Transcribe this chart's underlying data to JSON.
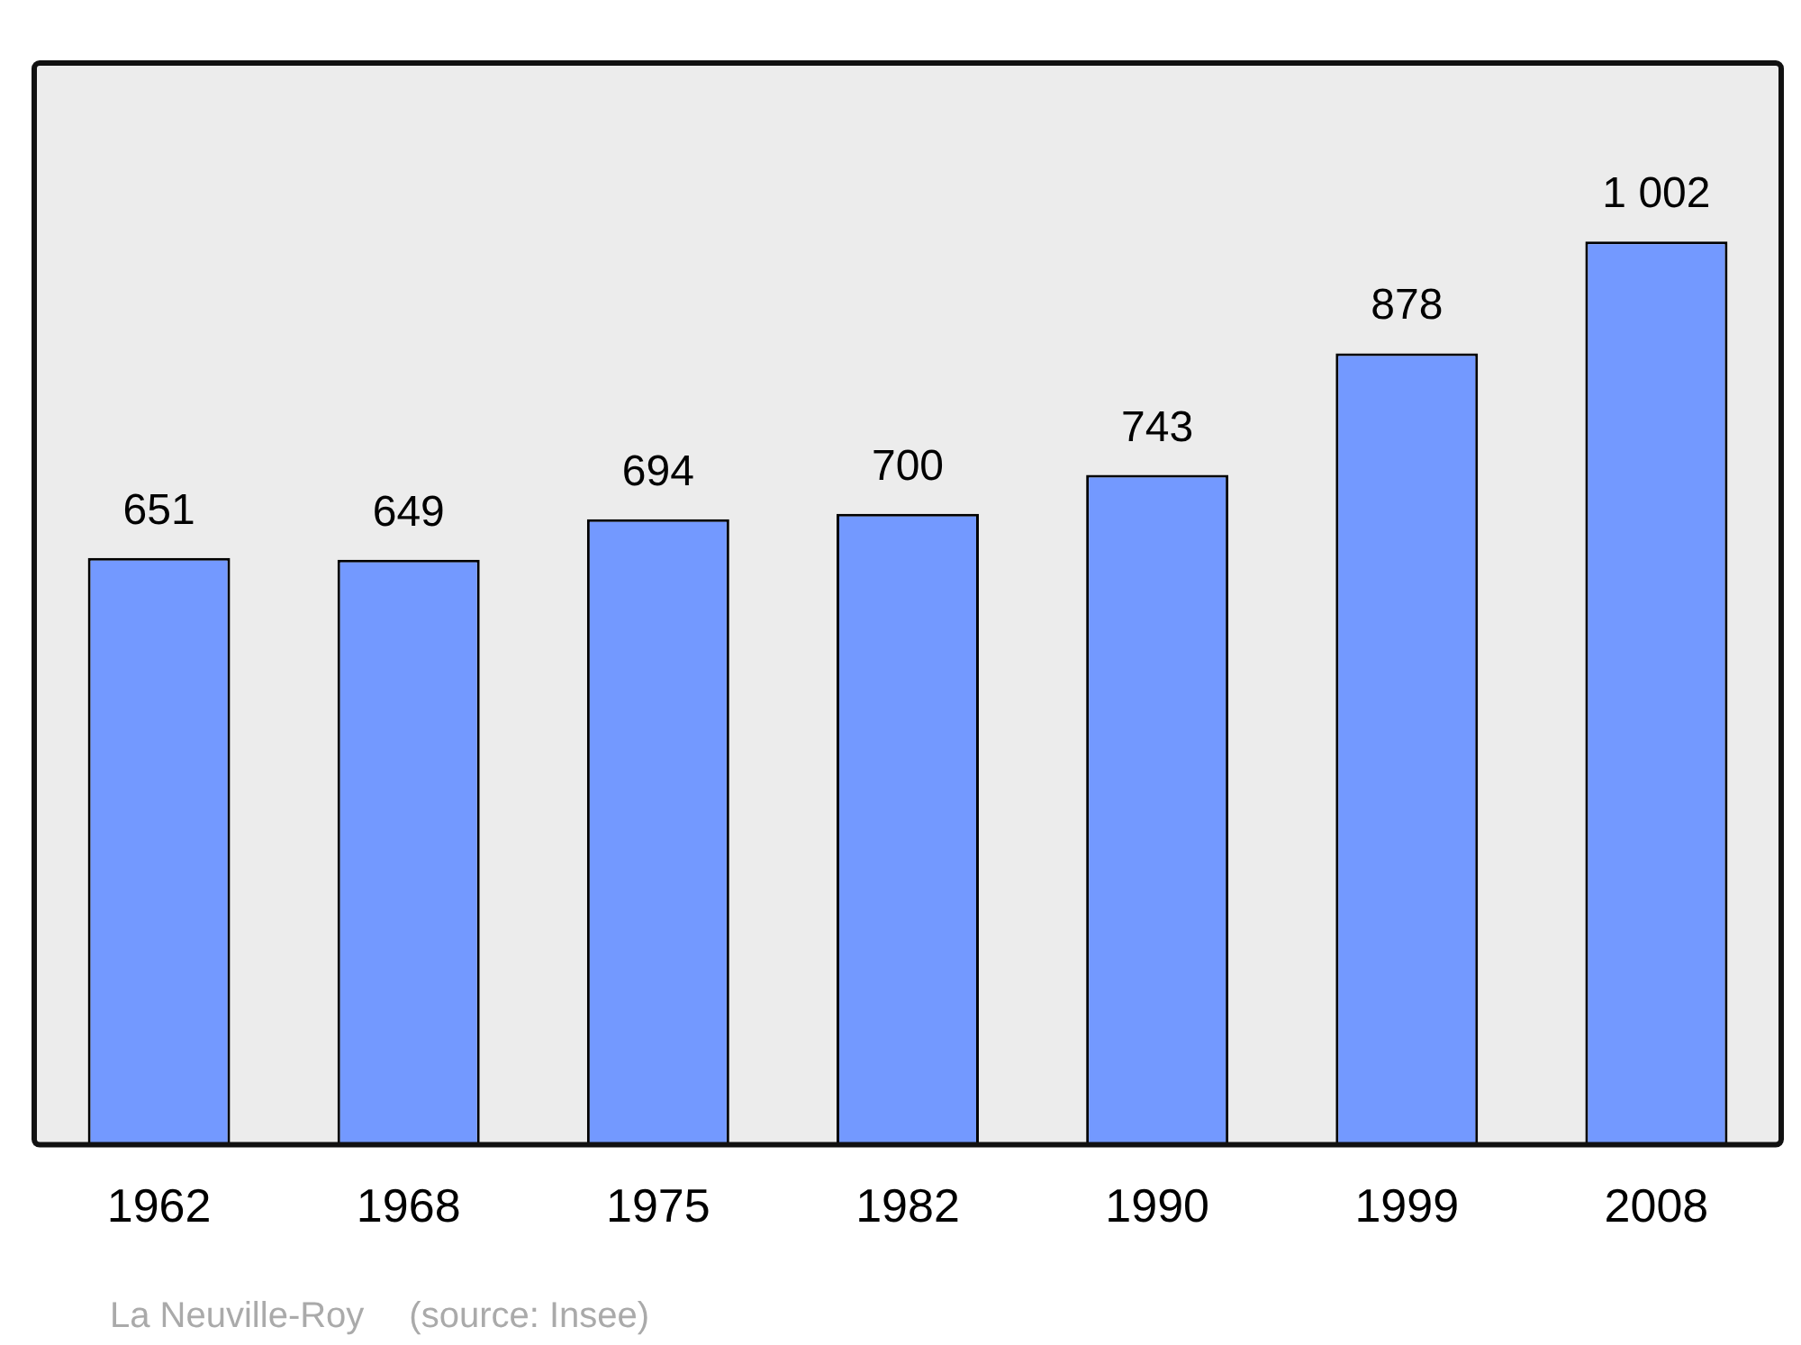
{
  "chart_data": {
    "type": "bar",
    "categories": [
      "1962",
      "1968",
      "1975",
      "1982",
      "1990",
      "1999",
      "2008"
    ],
    "values": [
      651,
      649,
      694,
      700,
      743,
      878,
      1002
    ],
    "value_labels": [
      "651",
      "649",
      "694",
      "700",
      "743",
      "878",
      "1 002"
    ],
    "color": "#7399ff",
    "relative": false,
    "grid": false,
    "legend": false,
    "annotations": [
      "La Neuville-Roy",
      "(source: Insee)"
    ]
  }
}
